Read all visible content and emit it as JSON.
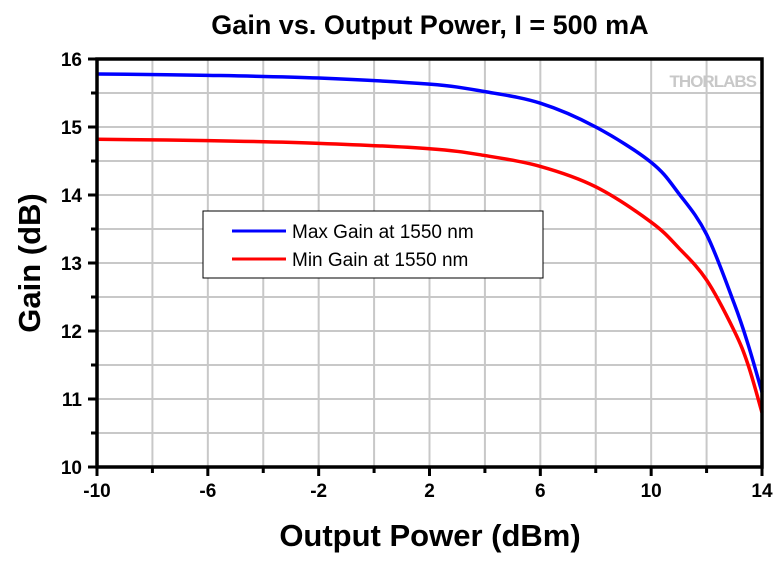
{
  "chart_data": {
    "type": "line",
    "title": "Gain vs. Output Power, I = 500 mA",
    "xlabel": "Output Power (dBm)",
    "ylabel": "Gain (dB)",
    "xlim": [
      -10,
      14
    ],
    "ylim": [
      10,
      16
    ],
    "xticks": [
      -10,
      -6,
      -2,
      2,
      6,
      10,
      14
    ],
    "yticks": [
      10,
      11,
      12,
      13,
      14,
      15,
      16
    ],
    "grid": true,
    "legend_position": "center-left",
    "watermark": "THORLABS",
    "series": [
      {
        "name": "Max Gain at 1550 nm",
        "color": "#0000ff",
        "x": [
          -10,
          -6,
          -2,
          2,
          4,
          6,
          8,
          10,
          11,
          12,
          13,
          13.5,
          14
        ],
        "y": [
          15.78,
          15.76,
          15.72,
          15.63,
          15.52,
          15.35,
          15.0,
          14.48,
          14.02,
          13.42,
          12.4,
          11.8,
          11.1
        ]
      },
      {
        "name": "Min Gain at 1550 nm",
        "color": "#ff0000",
        "x": [
          -10,
          -6,
          -2,
          2,
          4,
          6,
          8,
          10,
          11,
          12,
          13,
          13.5,
          14
        ],
        "y": [
          14.82,
          14.8,
          14.76,
          14.68,
          14.58,
          14.42,
          14.12,
          13.6,
          13.22,
          12.75,
          12.0,
          11.5,
          10.8
        ]
      }
    ]
  }
}
